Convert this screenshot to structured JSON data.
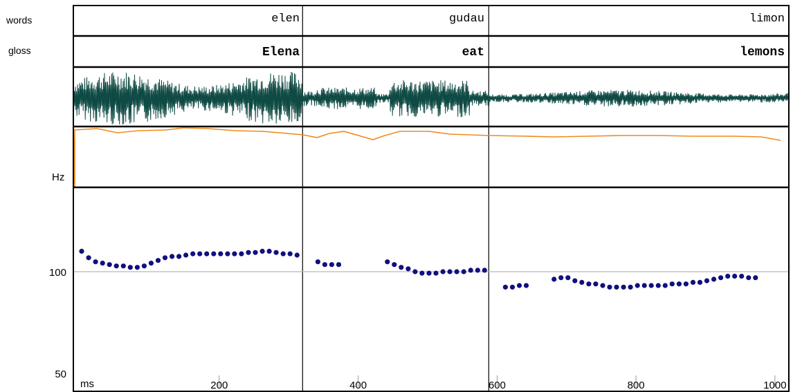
{
  "labels": {
    "words": "words",
    "gloss": "gloss",
    "hz": "Hz",
    "ms": "ms"
  },
  "tiers": {
    "words": [
      "elen",
      "gudau",
      "limon"
    ],
    "gloss": [
      "Elena",
      "eat",
      "lemons"
    ]
  },
  "colors": {
    "waveform": "#0f4a44",
    "intensity_line": "#f08a1a",
    "pitch_dot": "#10107f",
    "grid": "#b8b8b8",
    "border": "#000000"
  },
  "chart_data": {
    "type": "scatter",
    "xlabel": "ms",
    "ylabel": "Hz",
    "xlim": [
      -10,
      1020
    ],
    "x_ticks": [
      200,
      400,
      600,
      800,
      1000
    ],
    "y_ticks": [
      50,
      100
    ],
    "y_scale": "log",
    "ylim": [
      50,
      200
    ],
    "boundaries_ms": [
      320,
      588
    ],
    "series": [
      {
        "x": [
          2,
          12,
          22,
          32,
          42,
          52,
          62,
          72,
          82,
          92,
          102,
          112,
          122,
          132,
          142,
          152,
          162,
          172,
          182,
          192,
          202,
          212,
          222,
          232,
          242,
          252,
          262,
          272,
          282,
          292,
          302,
          312,
          342,
          352,
          362,
          372,
          442,
          452,
          462,
          472,
          482,
          492,
          502,
          512,
          522,
          532,
          542,
          552,
          562,
          572,
          582,
          612,
          622,
          632,
          642,
          682,
          692,
          702,
          712,
          722,
          732,
          742,
          752,
          762,
          772,
          782,
          792,
          802,
          812,
          822,
          832,
          842,
          852,
          862,
          872,
          882,
          892,
          902,
          912,
          922,
          932,
          942,
          952,
          962,
          972
        ],
        "y": [
          115,
          110,
          107,
          106,
          105,
          104,
          104,
          103,
          103,
          104,
          106,
          108,
          110,
          111,
          111,
          112,
          113,
          113,
          113,
          113,
          113,
          113,
          113,
          113,
          114,
          114,
          115,
          115,
          114,
          113,
          113,
          112,
          107,
          105,
          105,
          105,
          107,
          105,
          103,
          102,
          100,
          99,
          99,
          99,
          100,
          100,
          100,
          100,
          101,
          101,
          101,
          90,
          90,
          91,
          91,
          95,
          96,
          96,
          94,
          93,
          92,
          92,
          91,
          90,
          90,
          90,
          90,
          91,
          91,
          91,
          91,
          91,
          92,
          92,
          92,
          93,
          93,
          94,
          95,
          96,
          97,
          97,
          97,
          96,
          96
        ]
      }
    ]
  }
}
